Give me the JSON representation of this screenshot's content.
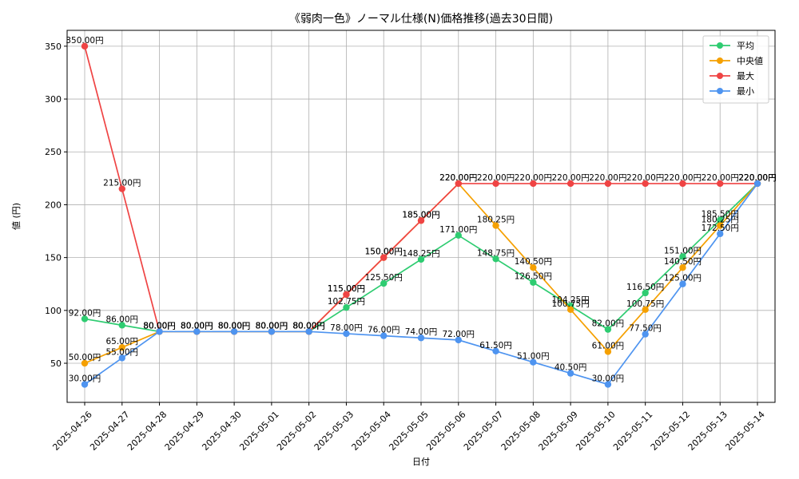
{
  "chart_data": {
    "type": "line",
    "title": "《弱肉一色》ノーマル仕様(N)価格推移(過去30日間)",
    "xlabel": "日付",
    "ylabel": "値 (円)",
    "ylim": [
      13,
      365
    ],
    "yticks": [
      50,
      100,
      150,
      200,
      250,
      300,
      350
    ],
    "grid": true,
    "legend_position": "top-right",
    "value_suffix": "円",
    "categories": [
      "2025-04-26",
      "2025-04-27",
      "2025-04-28",
      "2025-04-29",
      "2025-04-30",
      "2025-05-01",
      "2025-05-02",
      "2025-05-03",
      "2025-05-04",
      "2025-05-05",
      "2025-05-06",
      "2025-05-07",
      "2025-05-08",
      "2025-05-09",
      "2025-05-10",
      "2025-05-11",
      "2025-05-12",
      "2025-05-13",
      "2025-05-14"
    ],
    "series": [
      {
        "name": "平均",
        "color": "#2ecc71",
        "values": [
          92.0,
          86.0,
          80.0,
          80.0,
          80.0,
          80.0,
          80.0,
          102.75,
          125.5,
          148.25,
          171.0,
          148.75,
          126.5,
          104.25,
          82.0,
          116.5,
          151.0,
          185.5,
          220.0
        ]
      },
      {
        "name": "中央値",
        "color": "#f5a000",
        "values": [
          50.0,
          65.0,
          80.0,
          80.0,
          80.0,
          80.0,
          80.0,
          115.0,
          150.0,
          185.0,
          220.0,
          180.25,
          140.5,
          100.75,
          61.0,
          100.75,
          140.5,
          180.25,
          220.0
        ]
      },
      {
        "name": "最大",
        "color": "#ef4444",
        "values": [
          350.0,
          215.0,
          80.0,
          80.0,
          80.0,
          80.0,
          80.0,
          115.0,
          150.0,
          185.0,
          220.0,
          220.0,
          220.0,
          220.0,
          220.0,
          220.0,
          220.0,
          220.0,
          220.0
        ]
      },
      {
        "name": "最小",
        "color": "#4e94f0",
        "values": [
          30.0,
          55.0,
          80.0,
          80.0,
          80.0,
          80.0,
          80.0,
          78.0,
          76.0,
          74.0,
          72.0,
          61.5,
          51.0,
          40.5,
          30.0,
          77.5,
          125.0,
          172.5,
          220.0
        ]
      }
    ]
  }
}
